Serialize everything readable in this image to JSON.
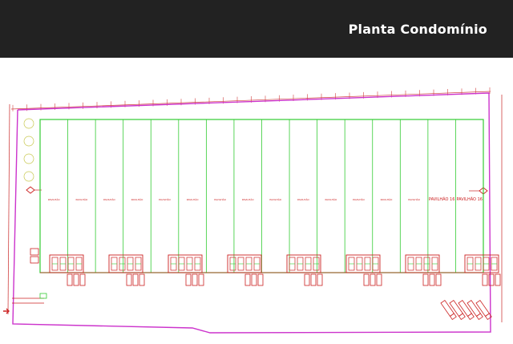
{
  "header": {
    "title": "Planta Condomínio"
  },
  "plan": {
    "pavilion_count": 16,
    "pavilions": [
      {
        "label": "PAVILHÃO",
        "sub": "",
        "highlight": false
      },
      {
        "label": "PAVILHÃO",
        "sub": "",
        "highlight": false
      },
      {
        "label": "PAVILHÃO",
        "sub": "",
        "highlight": false
      },
      {
        "label": "PAVILHÃO",
        "sub": "",
        "highlight": false
      },
      {
        "label": "PAVILHÃO",
        "sub": "",
        "highlight": false
      },
      {
        "label": "PAVILHÃO",
        "sub": "",
        "highlight": false
      },
      {
        "label": "PAVILHÃO",
        "sub": "",
        "highlight": false
      },
      {
        "label": "PAVILHÃO",
        "sub": "",
        "highlight": false
      },
      {
        "label": "PAVILHÃO",
        "sub": "",
        "highlight": false
      },
      {
        "label": "PAVILHÃO",
        "sub": "",
        "highlight": false
      },
      {
        "label": "PAVILHÃO",
        "sub": "",
        "highlight": false
      },
      {
        "label": "PAVILHÃO",
        "sub": "",
        "highlight": false
      },
      {
        "label": "PAVILHÃO",
        "sub": "",
        "highlight": false
      },
      {
        "label": "PAVILHÃO",
        "sub": "",
        "highlight": false
      },
      {
        "label": "PAVILHÃO 16",
        "sub": "",
        "highlight": true
      },
      {
        "label": "PAVILHÃO 16",
        "sub": "",
        "highlight": true
      }
    ],
    "colors": {
      "header_bg": "#222222",
      "header_text": "#ffffff",
      "boundary": "#cc33cc",
      "building": "#33cc33",
      "detail": "#cc2222",
      "grid": "#e05050",
      "background": "#ffffff"
    }
  }
}
